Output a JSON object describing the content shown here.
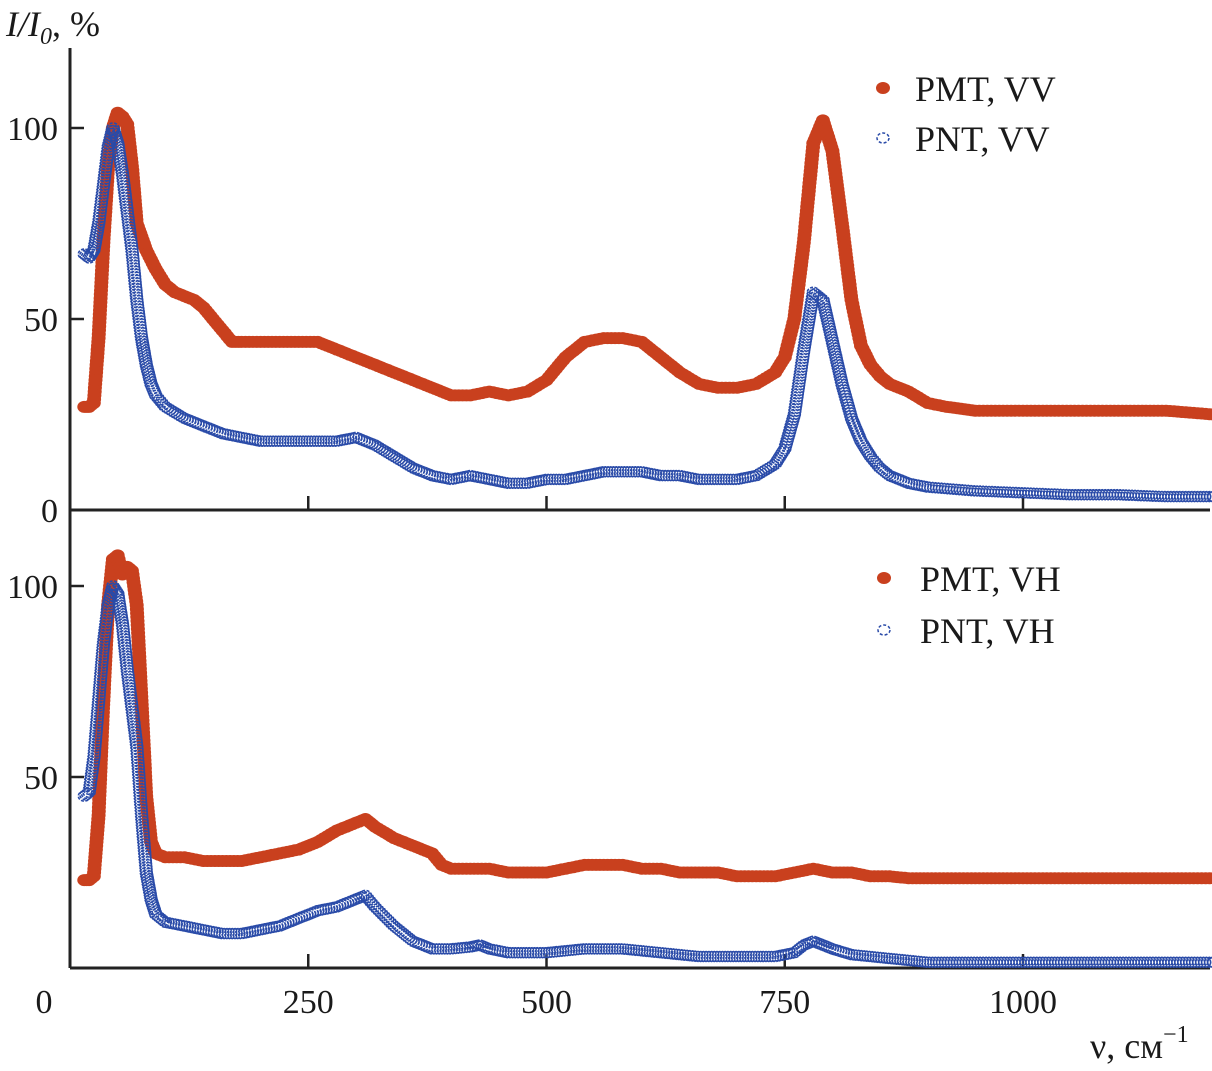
{
  "chart_data": [
    {
      "type": "scatter",
      "panel": "top",
      "title": "",
      "ylabel": "I/I0, %",
      "ylabel_parts": {
        "main": "I/I",
        "sub": "0",
        "suffix": ", %"
      },
      "xlabel": "",
      "xlim": [
        0,
        1200
      ],
      "ylim": [
        0,
        115
      ],
      "yticks": [
        0,
        50,
        100
      ],
      "ytick_labels": [
        "0",
        "50",
        "100"
      ],
      "xticks": [
        250,
        500,
        750,
        1000
      ],
      "xtick_labels": [],
      "grid": false,
      "legend_position": "top-right",
      "series": [
        {
          "name": "PMT, VV",
          "marker": "filled-circle",
          "color": "#C9401E",
          "x": [
            15,
            20,
            25,
            30,
            35,
            40,
            45,
            50,
            55,
            60,
            65,
            70,
            80,
            90,
            100,
            110,
            120,
            130,
            140,
            150,
            160,
            170,
            180,
            200,
            220,
            240,
            260,
            280,
            300,
            320,
            340,
            360,
            380,
            400,
            420,
            440,
            460,
            480,
            500,
            520,
            540,
            560,
            580,
            600,
            620,
            640,
            660,
            680,
            700,
            720,
            740,
            750,
            760,
            770,
            780,
            790,
            800,
            810,
            820,
            830,
            840,
            850,
            860,
            880,
            900,
            920,
            950,
            1000,
            1050,
            1100,
            1150,
            1200
          ],
          "y": [
            27,
            27,
            28,
            45,
            70,
            90,
            100,
            104,
            103,
            101,
            90,
            75,
            68,
            63,
            59,
            57,
            56,
            55,
            53,
            50,
            47,
            44,
            44,
            44,
            44,
            44,
            44,
            42,
            40,
            38,
            36,
            34,
            32,
            30,
            30,
            31,
            30,
            31,
            34,
            40,
            44,
            45,
            45,
            44,
            40,
            36,
            33,
            32,
            32,
            33,
            36,
            40,
            50,
            70,
            96,
            102,
            94,
            75,
            55,
            43,
            38,
            35,
            33,
            31,
            28,
            27,
            26,
            26,
            26,
            26,
            26,
            25
          ]
        },
        {
          "name": "PNT, VV",
          "marker": "open-circle",
          "color": "#2A4BA8",
          "x": [
            15,
            20,
            25,
            30,
            35,
            40,
            45,
            50,
            55,
            60,
            65,
            70,
            75,
            80,
            85,
            90,
            100,
            120,
            140,
            160,
            180,
            200,
            220,
            240,
            260,
            280,
            300,
            320,
            340,
            360,
            380,
            400,
            420,
            440,
            460,
            480,
            500,
            520,
            540,
            560,
            580,
            600,
            620,
            640,
            660,
            680,
            700,
            720,
            740,
            750,
            760,
            770,
            780,
            790,
            800,
            810,
            820,
            830,
            840,
            850,
            860,
            880,
            900,
            950,
            1000,
            1050,
            1100,
            1150,
            1200
          ],
          "y": [
            67,
            66,
            68,
            75,
            85,
            95,
            100,
            96,
            88,
            78,
            68,
            55,
            45,
            38,
            33,
            30,
            27,
            24,
            22,
            20,
            19,
            18,
            18,
            18,
            18,
            18,
            19,
            17,
            14,
            11,
            9,
            8,
            9,
            8,
            7,
            7,
            8,
            8,
            9,
            10,
            10,
            10,
            9,
            9,
            8,
            8,
            8,
            9,
            12,
            16,
            25,
            42,
            57,
            55,
            44,
            33,
            24,
            18,
            14,
            11,
            9,
            7,
            6,
            5,
            4.5,
            4,
            4,
            3.5,
            3.5
          ]
        }
      ]
    },
    {
      "type": "scatter",
      "panel": "bottom",
      "title": "",
      "ylabel": "",
      "xlabel": "ν, см−1",
      "xlabel_parts": {
        "main": "ν, см",
        "sup": "−1"
      },
      "xlim": [
        0,
        1200
      ],
      "ylim": [
        0,
        115
      ],
      "yticks": [
        50,
        100
      ],
      "ytick_labels": [
        "50",
        "100"
      ],
      "xticks": [
        250,
        500,
        750,
        1000
      ],
      "xtick_labels": [
        "0",
        "250",
        "500",
        "750",
        "1000"
      ],
      "xtick_label_values": [
        0,
        250,
        500,
        750,
        1000
      ],
      "grid": false,
      "legend_position": "top-right",
      "series": [
        {
          "name": "PMT, VH",
          "marker": "filled-circle",
          "color": "#C9401E",
          "x": [
            15,
            20,
            25,
            30,
            35,
            40,
            45,
            50,
            55,
            60,
            65,
            70,
            75,
            80,
            85,
            90,
            100,
            120,
            140,
            160,
            180,
            200,
            220,
            240,
            260,
            280,
            300,
            310,
            320,
            340,
            360,
            380,
            390,
            400,
            420,
            440,
            460,
            480,
            500,
            520,
            540,
            560,
            580,
            600,
            620,
            640,
            660,
            680,
            700,
            720,
            740,
            760,
            780,
            800,
            820,
            840,
            860,
            880,
            900,
            950,
            1000,
            1050,
            1100,
            1150,
            1200
          ],
          "y": [
            23,
            23,
            24,
            40,
            70,
            95,
            107,
            108,
            103,
            105,
            104,
            95,
            70,
            45,
            33,
            30,
            29,
            29,
            28,
            28,
            28,
            29,
            30,
            31,
            33,
            36,
            38,
            39,
            37,
            34,
            32,
            30,
            27,
            26,
            26,
            26,
            25,
            25,
            25,
            26,
            27,
            27,
            27,
            26,
            26,
            25,
            25,
            25,
            24,
            24,
            24,
            25,
            26,
            25,
            25,
            24,
            24,
            23.5,
            23.5,
            23.5,
            23.5,
            23.5,
            23.5,
            23.5,
            23.5
          ]
        },
        {
          "name": "PNT, VH",
          "marker": "open-circle",
          "color": "#2A4BA8",
          "x": [
            15,
            20,
            25,
            30,
            35,
            40,
            45,
            50,
            55,
            60,
            65,
            70,
            75,
            80,
            85,
            90,
            100,
            120,
            140,
            160,
            180,
            200,
            220,
            240,
            260,
            280,
            300,
            310,
            320,
            340,
            360,
            380,
            400,
            420,
            430,
            440,
            460,
            480,
            500,
            520,
            540,
            560,
            580,
            600,
            620,
            640,
            660,
            680,
            700,
            720,
            740,
            760,
            770,
            780,
            790,
            800,
            820,
            840,
            860,
            880,
            900,
            950,
            1000,
            1050,
            1100,
            1150,
            1200
          ],
          "y": [
            45,
            46,
            55,
            70,
            85,
            95,
            100,
            98,
            90,
            78,
            68,
            58,
            40,
            25,
            18,
            14,
            12,
            11,
            10,
            9,
            9,
            10,
            11,
            13,
            15,
            16,
            18,
            19,
            16,
            11,
            7,
            5,
            5,
            5.5,
            6,
            5,
            4,
            4,
            4,
            4.5,
            5,
            5,
            5,
            4.5,
            4,
            3.5,
            3,
            3,
            3,
            3,
            3,
            4,
            6,
            7,
            6,
            5,
            3.5,
            3,
            2.5,
            2,
            1.5,
            1.5,
            1.5,
            1.5,
            1.5,
            1.5,
            1.5
          ]
        }
      ]
    }
  ]
}
